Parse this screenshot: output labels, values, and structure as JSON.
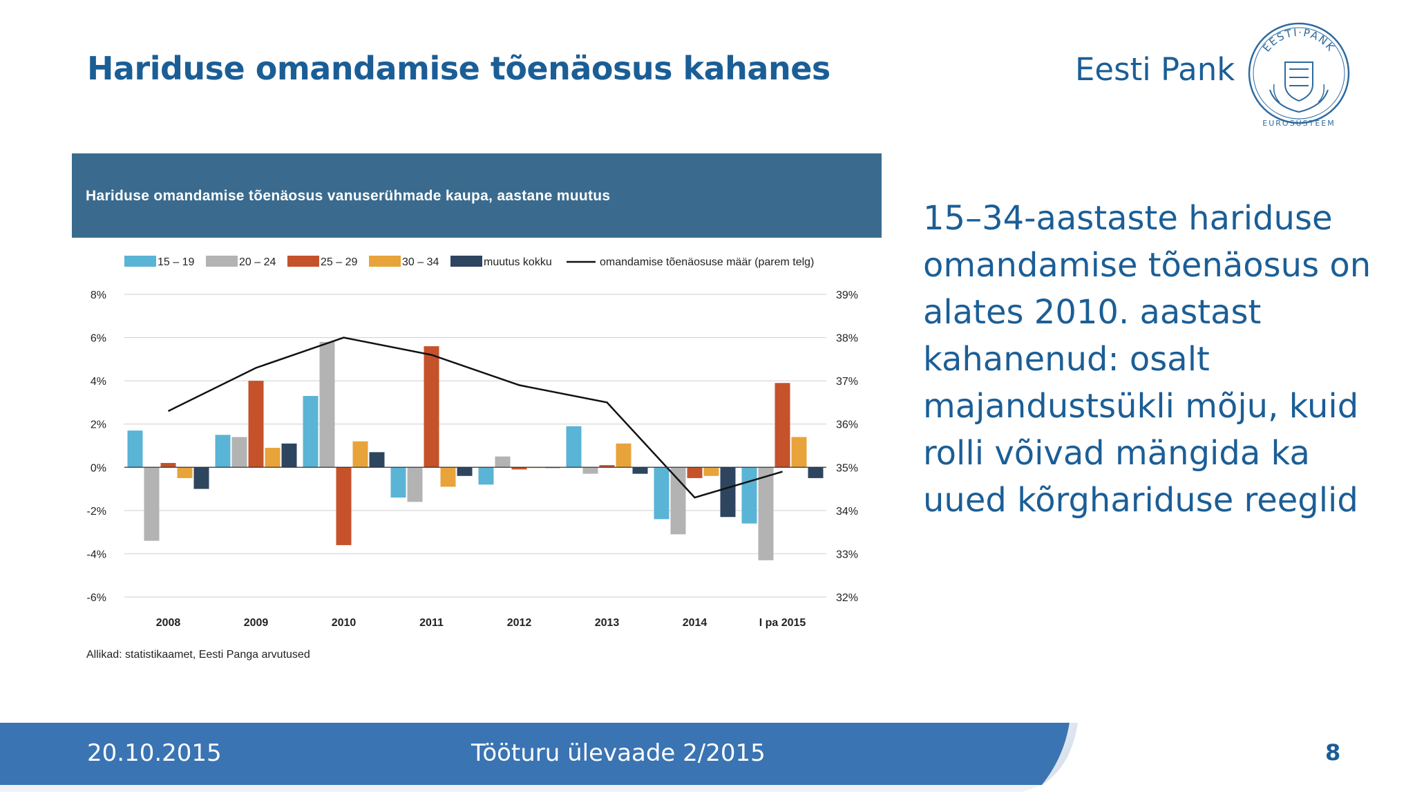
{
  "slide": {
    "title": "Hariduse omandamise tõenäosus kahanes",
    "brand": "Eesti Pank",
    "logo_text_top": "EESTI·PANK",
    "logo_text_bottom": "EUROSÜSTEEM",
    "side_text": "15–34-aastaste hariduse omandamise tõenäosus on alates 2010. aastast kahanenud: osalt majandustsükli mõju, kuid rolli võivad mängida ka uued kõrghariduse reeglid"
  },
  "footer": {
    "date": "20.10.2015",
    "center": "Tööturu ülevaade 2/2015",
    "page": "8"
  },
  "colors": {
    "title": "#1b5e96",
    "header_bg": "#3a6b8e",
    "footer_bg": "#3a74b3"
  },
  "chart_data": {
    "type": "bar",
    "title": "Hariduse omandamise tõenäosus vanuserühmade kaupa, aastane muutus",
    "source": "Allikad: statistikaamet, Eesti Panga arvutused",
    "categories": [
      "2008",
      "2009",
      "2010",
      "2011",
      "2012",
      "2013",
      "2014",
      "I pa 2015"
    ],
    "ylim": [
      -6,
      8
    ],
    "y_ticks": [
      "8%",
      "6%",
      "4%",
      "2%",
      "0%",
      "-2%",
      "-4%",
      "-6%"
    ],
    "y2lim": [
      32,
      39
    ],
    "y2_ticks": [
      "39%",
      "38%",
      "37%",
      "36%",
      "35%",
      "34%",
      "33%",
      "32%"
    ],
    "grid": true,
    "legend_position": "top",
    "series": [
      {
        "name": "15 – 19",
        "color": "#5ab4d6",
        "values": [
          1.7,
          1.5,
          3.3,
          -1.4,
          -0.8,
          1.9,
          -2.4,
          -2.6
        ]
      },
      {
        "name": "20 – 24",
        "color": "#b3b3b3",
        "values": [
          -3.4,
          1.4,
          5.8,
          -1.6,
          0.5,
          -0.3,
          -3.1,
          -4.3
        ]
      },
      {
        "name": "25 – 29",
        "color": "#c5522a",
        "values": [
          0.2,
          4.0,
          -3.6,
          5.6,
          -0.1,
          0.1,
          -0.5,
          3.9
        ]
      },
      {
        "name": "30 – 34",
        "color": "#e8a33a",
        "values": [
          -0.5,
          0.9,
          1.2,
          -0.9,
          0.0,
          1.1,
          -0.4,
          1.4
        ]
      },
      {
        "name": "muutus kokku",
        "color": "#2e4560",
        "values": [
          -1.0,
          1.1,
          0.7,
          -0.4,
          0.0,
          -0.3,
          -2.3,
          -0.5
        ]
      }
    ],
    "line_series": {
      "name": "omandamise tõenäosuse määr (parem telg)",
      "color": "#111111",
      "axis": "right",
      "values": [
        36.3,
        37.3,
        38.0,
        37.6,
        36.9,
        36.5,
        34.3,
        34.9
      ]
    }
  }
}
